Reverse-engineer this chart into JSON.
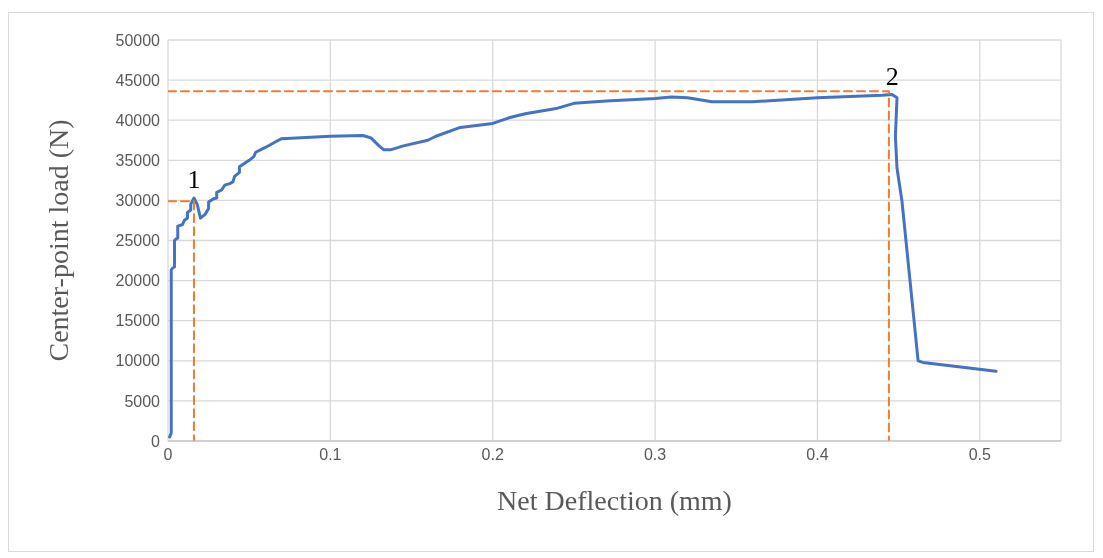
{
  "chart_data": {
    "type": "line",
    "xlabel": "Net Deflection (mm)",
    "ylabel": "Center-point load (N)",
    "xlim": [
      0,
      0.55
    ],
    "xticks": [
      0,
      0.1,
      0.2,
      0.3,
      0.4,
      0.5
    ],
    "ylim": [
      0,
      50000
    ],
    "yticks": [
      0,
      5000,
      10000,
      15000,
      20000,
      25000,
      30000,
      35000,
      40000,
      45000,
      50000
    ],
    "grid": true,
    "legend": false,
    "marker": "none",
    "annotations": [
      {
        "text": "1",
        "x": 0.016,
        "y": 30300
      },
      {
        "text": "2",
        "x": 0.446,
        "y": 43200
      }
    ],
    "series": [
      {
        "color": "#4472c4",
        "line_style": "solid",
        "x": [
          0.001,
          0.002,
          0.002,
          0.003,
          0.004,
          0.004,
          0.005,
          0.006,
          0.006,
          0.009,
          0.01,
          0.012,
          0.012,
          0.014,
          0.014,
          0.016,
          0.018,
          0.02,
          0.023,
          0.025,
          0.025,
          0.028,
          0.03,
          0.03,
          0.033,
          0.035,
          0.038,
          0.04,
          0.041,
          0.044,
          0.044,
          0.047,
          0.05,
          0.053,
          0.054,
          0.06,
          0.068,
          0.07,
          0.1,
          0.12,
          0.125,
          0.13,
          0.133,
          0.137,
          0.145,
          0.16,
          0.165,
          0.18,
          0.2,
          0.21,
          0.22,
          0.24,
          0.25,
          0.27,
          0.3,
          0.31,
          0.32,
          0.335,
          0.36,
          0.4,
          0.44,
          0.446,
          0.449,
          0.448,
          0.449,
          0.452,
          0.457,
          0.462,
          0.465,
          0.51
        ],
        "values": [
          500,
          1000,
          21300,
          21600,
          21700,
          25000,
          25200,
          25300,
          26800,
          27000,
          27500,
          27800,
          28500,
          28800,
          29500,
          30300,
          29500,
          27800,
          28300,
          29000,
          29800,
          30200,
          30300,
          31000,
          31300,
          31900,
          32100,
          32300,
          33000,
          33500,
          34200,
          34600,
          35000,
          35500,
          36000,
          36600,
          37500,
          37700,
          38000,
          38100,
          37800,
          36800,
          36300,
          36300,
          36800,
          37500,
          38000,
          39100,
          39600,
          40300,
          40800,
          41500,
          42100,
          42400,
          42700,
          42900,
          42800,
          42300,
          42300,
          42800,
          43100,
          43200,
          42800,
          38000,
          34000,
          30000,
          20000,
          10000,
          9800,
          8700
        ]
      },
      {
        "color": "#ed7d31",
        "line_style": "dashed",
        "x": [
          0,
          0.016,
          0.016
        ],
        "values": [
          29900,
          29900,
          0
        ]
      },
      {
        "color": "#ed7d31",
        "line_style": "dashed",
        "x": [
          0,
          0.444,
          0.444
        ],
        "values": [
          43600,
          43600,
          0
        ]
      }
    ]
  }
}
